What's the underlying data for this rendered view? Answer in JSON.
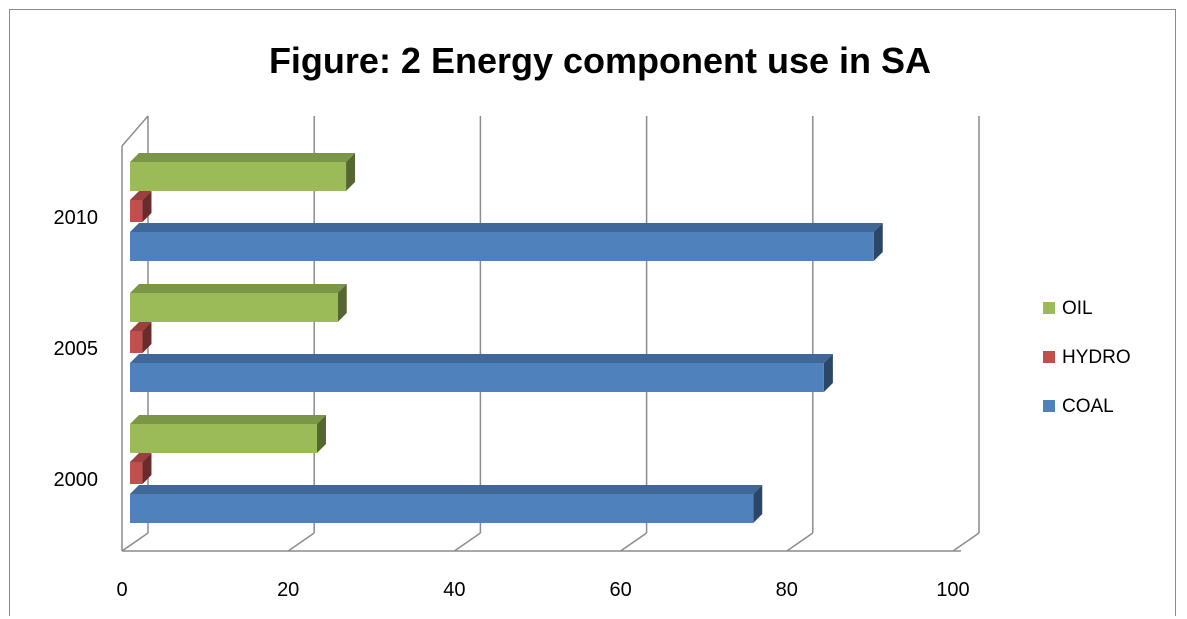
{
  "chart_data": {
    "type": "bar",
    "orientation": "horizontal",
    "style": "3d-clustered",
    "title": "Figure: 2 Energy component use in SA",
    "categories": [
      "2000",
      "2005",
      "2010"
    ],
    "series": [
      {
        "name": "COAL",
        "color": "#4F81BD",
        "values": [
          75,
          83.5,
          89.5
        ]
      },
      {
        "name": "HYDRO",
        "color": "#C0504D",
        "values": [
          1.5,
          1.5,
          1.5
        ]
      },
      {
        "name": "OIL",
        "color": "#9BBB59",
        "values": [
          22.5,
          25,
          26
        ]
      }
    ],
    "xlim": [
      0,
      100
    ],
    "xticks": [
      "0",
      "20",
      "40",
      "60",
      "80",
      "100"
    ],
    "legend_order": [
      "OIL",
      "HYDRO",
      "COAL"
    ],
    "legend_position": "right",
    "grid": true
  }
}
